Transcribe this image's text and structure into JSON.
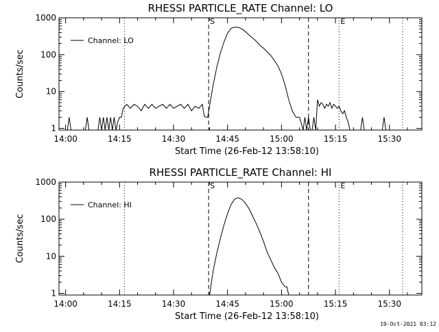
{
  "footer": {
    "timestamp": "19-Oct-2021 03:12"
  },
  "chart_data": [
    {
      "type": "line",
      "title": "RHESSI PARTICLE_RATE Channel: LO",
      "xlabel": "Start Time (26-Feb-12 13:58:10)",
      "ylabel": "Counts/sec",
      "yscale": "log",
      "xlim": [
        "13:58:10",
        "15:39:00"
      ],
      "ylim": [
        0.9,
        1000
      ],
      "x_ticks": [
        "14:00",
        "14:15",
        "14:30",
        "14:45",
        "15:00",
        "15:15",
        "15:30"
      ],
      "y_ticks": [
        "1",
        "10",
        "100",
        "1000"
      ],
      "legend": "top-left",
      "markers": [
        {
          "time": "14:39:45",
          "label": "S",
          "style": "dashed"
        },
        {
          "time": "15:07:30",
          "label": "",
          "style": "dashed"
        },
        {
          "time": "15:16:00",
          "label": "E",
          "style": "dotted"
        },
        {
          "time": "14:16:20",
          "label": "",
          "style": "dotted"
        },
        {
          "time": "15:33:40",
          "label": "",
          "style": "dotted"
        }
      ],
      "series": [
        {
          "name": "Channel: LO",
          "x": [
            "14:00:30",
            "14:01:00",
            "14:01:30",
            "14:05:30",
            "14:06:00",
            "14:06:30",
            "14:09:00",
            "14:09:30",
            "14:10:00",
            "14:10:30",
            "14:11:00",
            "14:11:30",
            "14:12:00",
            "14:12:30",
            "14:13:00",
            "14:13:30",
            "14:14:00",
            "14:14:30",
            "14:15:00",
            "14:15:30",
            "14:16:00",
            "14:17:00",
            "14:18:00",
            "14:19:00",
            "14:20:00",
            "14:21:00",
            "14:22:00",
            "14:23:00",
            "14:24:00",
            "14:25:00",
            "14:26:00",
            "14:27:00",
            "14:28:00",
            "14:29:00",
            "14:30:00",
            "14:31:00",
            "14:32:00",
            "14:33:00",
            "14:34:00",
            "14:35:00",
            "14:36:00",
            "14:37:00",
            "14:38:00",
            "14:38:30",
            "14:39:00",
            "14:39:30",
            "14:40:00",
            "14:41:00",
            "14:42:00",
            "14:43:00",
            "14:44:00",
            "14:45:00",
            "14:46:00",
            "14:47:00",
            "14:48:00",
            "14:49:00",
            "14:50:00",
            "14:51:00",
            "14:52:00",
            "14:53:00",
            "14:54:00",
            "14:55:00",
            "14:56:00",
            "14:57:00",
            "14:58:00",
            "14:59:00",
            "15:00:00",
            "15:01:00",
            "15:02:00",
            "15:03:00",
            "15:04:00",
            "15:05:00",
            "15:05:30",
            "15:06:00",
            "15:06:30",
            "15:07:00",
            "15:07:30",
            "15:08:00",
            "15:08:30",
            "15:09:00",
            "15:09:30",
            "15:10:00",
            "15:10:30",
            "15:11:00",
            "15:11:30",
            "15:12:00",
            "15:12:30",
            "15:13:00",
            "15:13:30",
            "15:14:00",
            "15:14:30",
            "15:15:00",
            "15:15:30",
            "15:16:00",
            "15:16:30",
            "15:17:00",
            "15:17:30",
            "15:18:00",
            "15:18:30",
            "15:19:00",
            "15:22:00",
            "15:22:30",
            "15:23:00",
            "15:28:00",
            "15:28:30",
            "15:29:00"
          ],
          "y": [
            0.9,
            2.0,
            0.9,
            0.9,
            2.0,
            0.9,
            0.9,
            2.0,
            0.9,
            2.0,
            0.9,
            2.0,
            0.9,
            2.0,
            0.9,
            2.0,
            0.9,
            1.5,
            2.0,
            2.0,
            3.5,
            4.5,
            3.5,
            4.5,
            4.0,
            3.0,
            4.5,
            3.5,
            4.5,
            3.5,
            4.0,
            4.5,
            3.5,
            4.5,
            3.5,
            4.0,
            4.5,
            3.5,
            4.5,
            3.0,
            4.0,
            3.5,
            4.5,
            2.2,
            2.0,
            2.0,
            4.0,
            15.0,
            45.0,
            110.0,
            220.0,
            380.0,
            520.0,
            560.0,
            550.0,
            500.0,
            420.0,
            340.0,
            280.0,
            230.0,
            180.0,
            150.0,
            120.0,
            95.0,
            70.0,
            50.0,
            30.0,
            15.0,
            6.0,
            3.0,
            2.0,
            2.0,
            1.4,
            0.9,
            2.0,
            0.9,
            2.0,
            0.9,
            0.9,
            2.0,
            0.9,
            6.0,
            4.0,
            5.0,
            4.5,
            3.5,
            4.5,
            4.0,
            5.0,
            3.5,
            4.5,
            4.0,
            3.5,
            4.0,
            3.0,
            2.5,
            3.0,
            2.0,
            1.5,
            0.9,
            0.9,
            2.0,
            0.9,
            0.9,
            2.0,
            0.9
          ]
        }
      ]
    },
    {
      "type": "line",
      "title": "RHESSI PARTICLE_RATE Channel: HI",
      "xlabel": "Start Time (26-Feb-12 13:58:10)",
      "ylabel": "Counts/sec",
      "yscale": "log",
      "xlim": [
        "13:58:10",
        "15:39:00"
      ],
      "ylim": [
        0.9,
        1000
      ],
      "x_ticks": [
        "14:00",
        "14:15",
        "14:30",
        "14:45",
        "15:00",
        "15:15",
        "15:30"
      ],
      "y_ticks": [
        "1",
        "10",
        "100",
        "1000"
      ],
      "legend": "top-left",
      "markers": [
        {
          "time": "14:39:45",
          "label": "S",
          "style": "dashed"
        },
        {
          "time": "15:07:30",
          "label": "",
          "style": "dashed"
        },
        {
          "time": "15:16:00",
          "label": "E",
          "style": "dotted"
        },
        {
          "time": "14:16:20",
          "label": "",
          "style": "dotted"
        },
        {
          "time": "15:33:40",
          "label": "",
          "style": "dotted"
        }
      ],
      "series": [
        {
          "name": "Channel: HI",
          "x": [
            "14:40:00",
            "14:41:00",
            "14:42:00",
            "14:43:00",
            "14:44:00",
            "14:45:00",
            "14:46:00",
            "14:47:00",
            "14:48:00",
            "14:49:00",
            "14:50:00",
            "14:51:00",
            "14:52:00",
            "14:53:00",
            "14:54:00",
            "14:55:00",
            "14:56:00",
            "14:57:00",
            "14:58:00",
            "14:59:00",
            "15:00:00",
            "15:01:00",
            "15:01:30",
            "15:02:00"
          ],
          "y": [
            0.9,
            4.0,
            12.0,
            30.0,
            70.0,
            140.0,
            250.0,
            350.0,
            380.0,
            340.0,
            270.0,
            190.0,
            120.0,
            75.0,
            45.0,
            25.0,
            13.0,
            8.0,
            5.0,
            3.5,
            2.0,
            1.5,
            1.5,
            0.9
          ]
        }
      ]
    }
  ]
}
